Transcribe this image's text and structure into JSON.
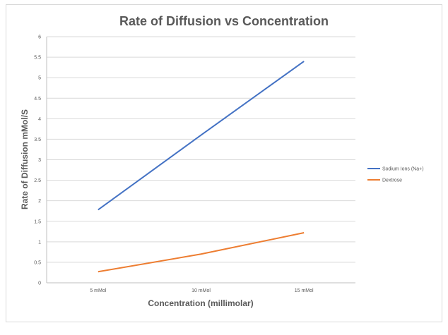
{
  "chart_data": {
    "type": "line",
    "title": "Rate of Diffusion vs Concentration",
    "xlabel": "Concentration (millimolar)",
    "ylabel": "Rate of Diffusion mMol/S",
    "categories": [
      "5 mMol",
      "10 mMol",
      "15 mMol"
    ],
    "ylim": [
      0,
      6
    ],
    "yticks": [
      0,
      0.5,
      1,
      1.5,
      2,
      2.5,
      3,
      3.5,
      4,
      4.5,
      5,
      5.5,
      6
    ],
    "ytick_labels": [
      "0",
      "0.5",
      "1",
      "1.5",
      "2",
      "2.5",
      "3",
      "3.5",
      "4",
      "4.5",
      "5",
      "5.5",
      "6"
    ],
    "grid": true,
    "legend_position": "right",
    "series": [
      {
        "name": "Sodium Ions (Na+)",
        "values": [
          1.78,
          3.6,
          5.4
        ],
        "color": "#4472c4"
      },
      {
        "name": "Dextrose",
        "values": [
          0.27,
          0.7,
          1.22
        ],
        "color": "#ed7d31"
      }
    ]
  }
}
